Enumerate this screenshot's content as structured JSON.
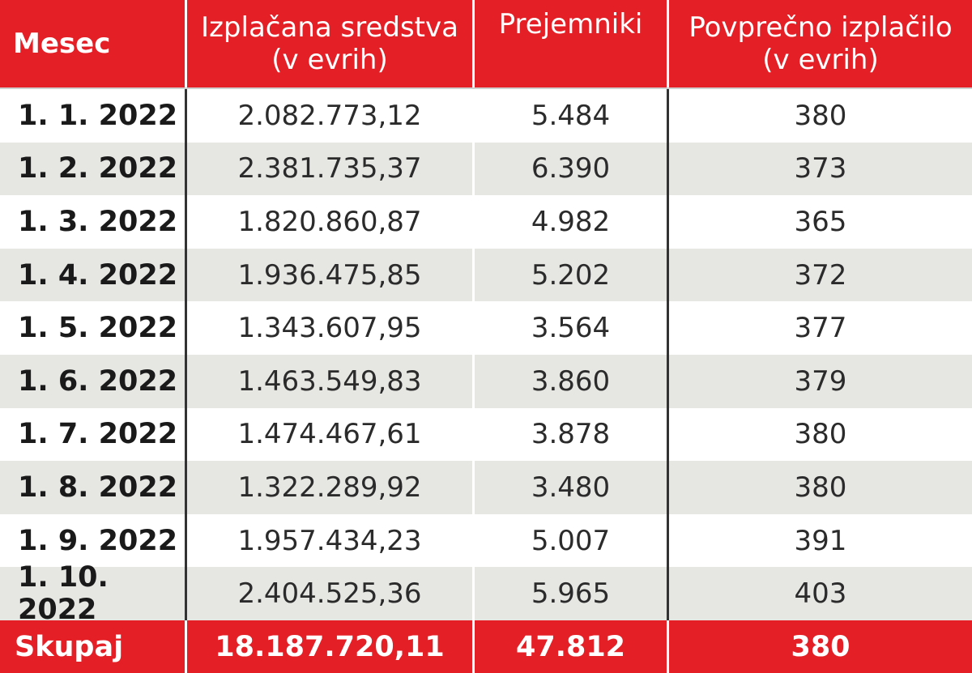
{
  "headers": {
    "month": "Mesec",
    "funds_line1": "Izplačana sredstva",
    "funds_line2": "(v evrih)",
    "recipients": "Prejemniki",
    "avg_line1": "Povprečno izplačilo",
    "avg_line2": "(v evrih)"
  },
  "rows": [
    {
      "month": "1. 1. 2022",
      "funds": "2.082.773,12",
      "recipients": "5.484",
      "avg": "380"
    },
    {
      "month": "1. 2. 2022",
      "funds": "2.381.735,37",
      "recipients": "6.390",
      "avg": "373"
    },
    {
      "month": "1. 3. 2022",
      "funds": "1.820.860,87",
      "recipients": "4.982",
      "avg": "365"
    },
    {
      "month": "1. 4. 2022",
      "funds": "1.936.475,85",
      "recipients": "5.202",
      "avg": "372"
    },
    {
      "month": "1. 5. 2022",
      "funds": "1.343.607,95",
      "recipients": "3.564",
      "avg": "377"
    },
    {
      "month": "1. 6. 2022",
      "funds": "1.463.549,83",
      "recipients": "3.860",
      "avg": "379"
    },
    {
      "month": "1. 7. 2022",
      "funds": "1.474.467,61",
      "recipients": "3.878",
      "avg": "380"
    },
    {
      "month": "1. 8. 2022",
      "funds": "1.322.289,92",
      "recipients": "3.480",
      "avg": "380"
    },
    {
      "month": "1. 9. 2022",
      "funds": "1.957.434,23",
      "recipients": "5.007",
      "avg": "391"
    },
    {
      "month": "1. 10. 2022",
      "funds": "2.404.525,36",
      "recipients": "5.965",
      "avg": "403"
    }
  ],
  "total": {
    "label": "Skupaj",
    "funds": "18.187.720,11",
    "recipients": "47.812",
    "avg": "380"
  },
  "colors": {
    "accent_red": "#e41f26",
    "stripe_gray": "#e6e6e3",
    "text_dark": "#2b2b2b"
  }
}
